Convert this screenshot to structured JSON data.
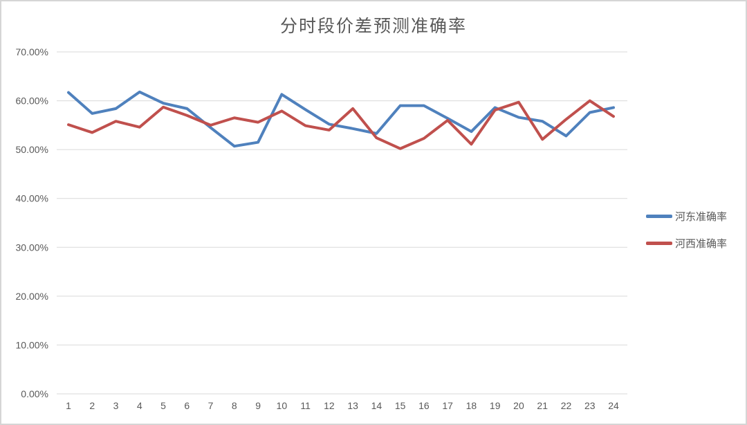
{
  "window": {
    "background": "#ffffff",
    "border_color": "#d5d5d5"
  },
  "chart_data": {
    "type": "line",
    "title": "分时段价差预测准确率",
    "categories": [
      "1",
      "2",
      "3",
      "4",
      "5",
      "6",
      "7",
      "8",
      "9",
      "10",
      "11",
      "12",
      "13",
      "14",
      "15",
      "16",
      "17",
      "18",
      "19",
      "20",
      "21",
      "22",
      "23",
      "24"
    ],
    "series": [
      {
        "name": "河东准确率",
        "color": "#4F81BD",
        "values": [
          61.7,
          57.4,
          58.4,
          61.8,
          59.5,
          58.4,
          54.5,
          50.7,
          51.5,
          61.3,
          58.2,
          55.2,
          54.3,
          53.3,
          59.0,
          59.0,
          56.4,
          53.7,
          58.6,
          56.6,
          55.8,
          52.8,
          57.6,
          58.6
        ]
      },
      {
        "name": "河西准确率",
        "color": "#C0504D",
        "values": [
          55.1,
          53.5,
          55.8,
          54.6,
          58.7,
          57.0,
          55.0,
          56.5,
          55.6,
          57.9,
          54.9,
          54.0,
          58.4,
          52.4,
          50.2,
          52.3,
          56.0,
          51.1,
          58.1,
          59.7,
          52.1,
          56.2,
          60.0,
          56.8
        ]
      }
    ],
    "xlabel": "",
    "ylabel": "",
    "ylim": [
      0,
      70
    ],
    "ytick_step": 10,
    "ytick_labels": [
      "0.00%",
      "10.00%",
      "20.00%",
      "30.00%",
      "40.00%",
      "50.00%",
      "60.00%",
      "70.00%"
    ],
    "grid": true,
    "legend_position": "right",
    "text_color": "#595959",
    "grid_color": "#d9d9d9",
    "line_width": 4
  }
}
